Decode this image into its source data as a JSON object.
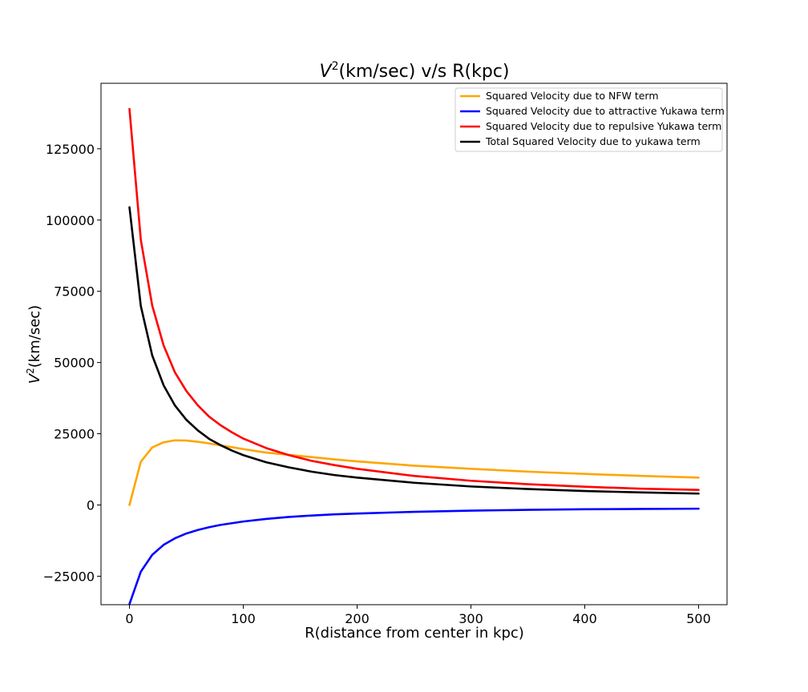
{
  "chart_data": {
    "type": "line",
    "title": {
      "main": "V",
      "sup": "2",
      "rest": "(km/sec) v/s R(kpc)"
    },
    "xlabel": "R(distance from center in kpc)",
    "ylabel": {
      "main": "V",
      "sup": "2",
      "rest": "(km/sec)"
    },
    "xlim": [
      -25,
      525
    ],
    "ylim": [
      -35000,
      148000
    ],
    "xticks": [
      0,
      100,
      200,
      300,
      400,
      500
    ],
    "xtick_labels": [
      "0",
      "100",
      "200",
      "300",
      "400",
      "500"
    ],
    "yticks": [
      -25000,
      0,
      25000,
      50000,
      75000,
      100000,
      125000
    ],
    "ytick_labels": [
      "−25000",
      "0",
      "25000",
      "50000",
      "75000",
      "100000",
      "125000"
    ],
    "grid": false,
    "legend_position": "top-right",
    "x": [
      0,
      10,
      20,
      30,
      40,
      50,
      60,
      70,
      80,
      90,
      100,
      120,
      140,
      160,
      180,
      200,
      250,
      300,
      350,
      400,
      450,
      500
    ],
    "series": [
      {
        "name": "Squared Velocity due to NFW term",
        "color": "#ffa500",
        "values": [
          0,
          15200,
          20200,
          22000,
          22700,
          22600,
          22200,
          21600,
          20900,
          20300,
          19600,
          18400,
          17600,
          16800,
          16000,
          15300,
          13800,
          12700,
          11700,
          10900,
          10200,
          9600
        ]
      },
      {
        "name": "Squared Velocity due to attractive Yukawa term",
        "color": "#0000ff",
        "values": [
          -34800,
          -23400,
          -17500,
          -14000,
          -11700,
          -10000,
          -8800,
          -7800,
          -7000,
          -6400,
          -5800,
          -4900,
          -4200,
          -3700,
          -3300,
          -3000,
          -2400,
          -2000,
          -1700,
          -1500,
          -1400,
          -1300
        ]
      },
      {
        "name": "Squared Velocity due to repulsive Yukawa term",
        "color": "#ff0000",
        "values": [
          139000,
          93000,
          70000,
          56000,
          46500,
          40000,
          35000,
          31000,
          28000,
          25500,
          23300,
          20000,
          17500,
          15500,
          14000,
          12700,
          10200,
          8500,
          7300,
          6400,
          5700,
          5300
        ]
      },
      {
        "name": "Total Squared Velocity due to yukawa term",
        "color": "#000000",
        "values": [
          104500,
          69800,
          52500,
          42000,
          34900,
          29900,
          26200,
          23200,
          21000,
          19100,
          17500,
          15000,
          13200,
          11700,
          10500,
          9600,
          7800,
          6500,
          5600,
          4900,
          4400,
          4000
        ]
      }
    ]
  }
}
